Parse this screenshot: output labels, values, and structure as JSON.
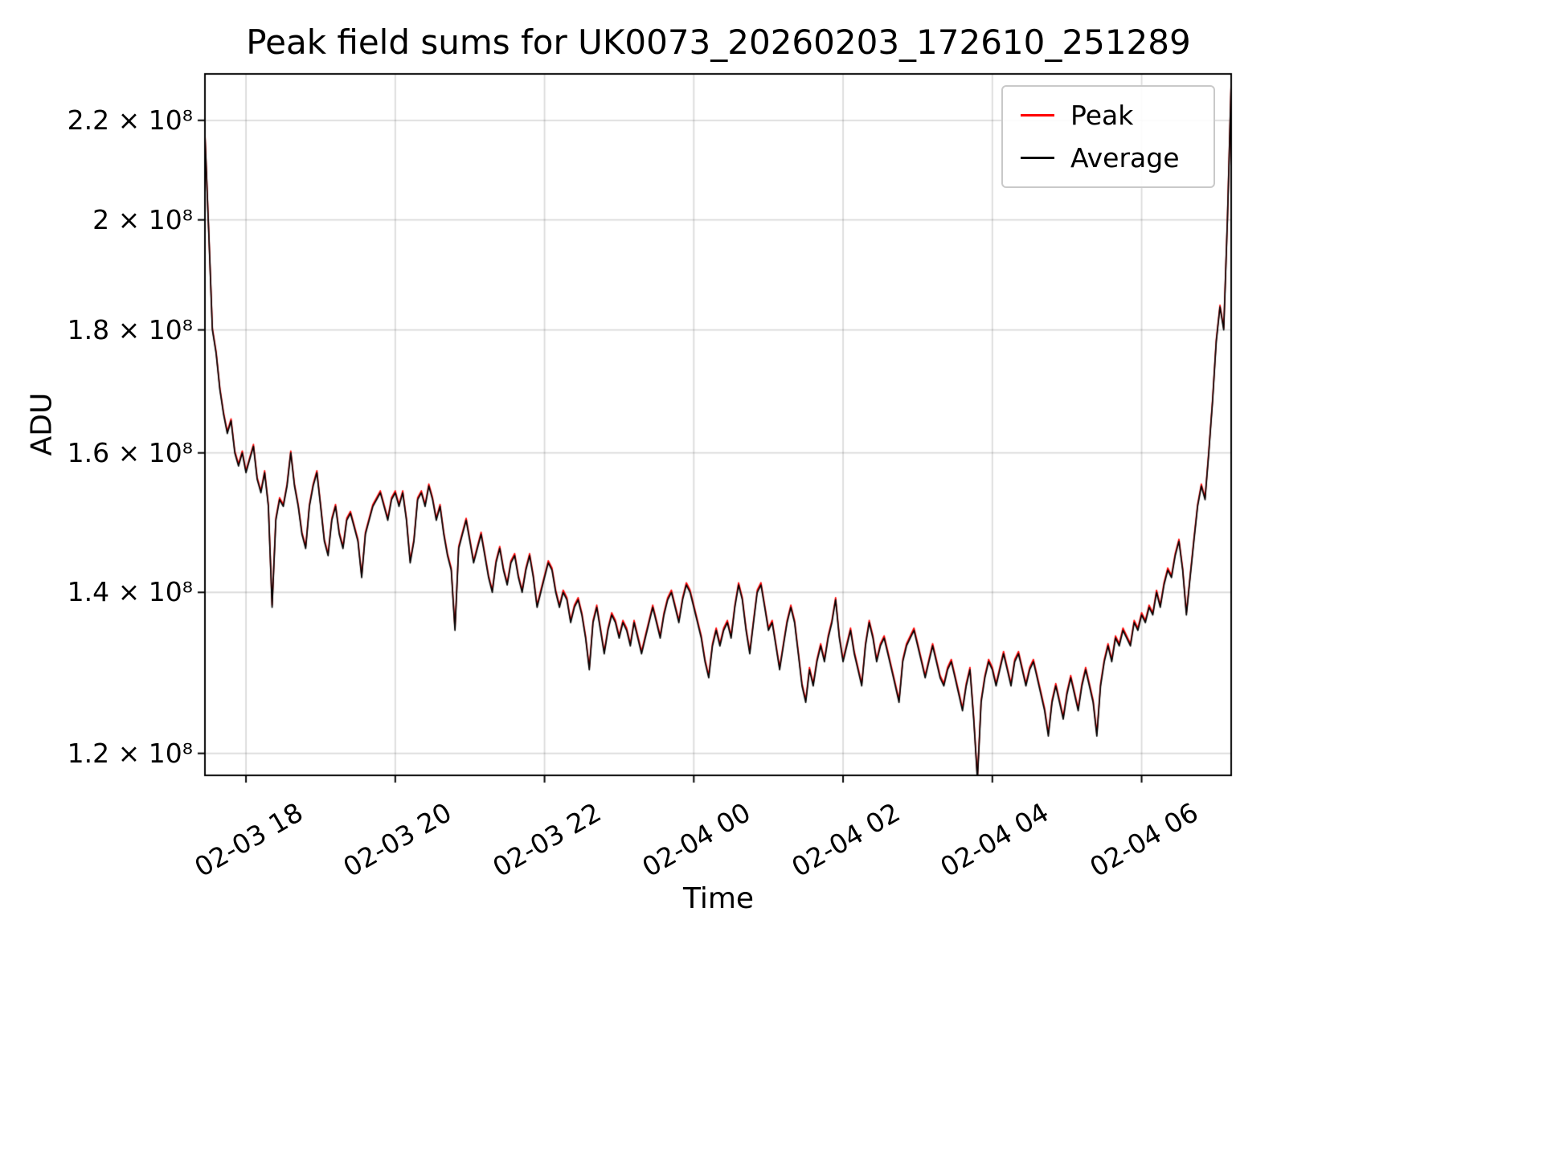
{
  "chart_data": {
    "type": "line",
    "title": "Peak field sums for UK0073_20260203_172610_251289",
    "xlabel": "Time",
    "ylabel": "ADU",
    "yscale": "log",
    "grid": true,
    "legend_position": "upper right",
    "x_unit": "hours since 02-03 00:00",
    "values_unit": "1e8 ADU",
    "xlim": [
      17.45,
      31.2
    ],
    "ylim_e8": [
      1.175,
      2.3
    ],
    "x_ticks": [
      {
        "hour": 18,
        "label": "02-03 18"
      },
      {
        "hour": 20,
        "label": "02-03 20"
      },
      {
        "hour": 22,
        "label": "02-03 22"
      },
      {
        "hour": 24,
        "label": "02-04 00"
      },
      {
        "hour": 26,
        "label": "02-04 02"
      },
      {
        "hour": 28,
        "label": "02-04 04"
      },
      {
        "hour": 30,
        "label": "02-04 06"
      }
    ],
    "y_ticks": [
      {
        "value_e8": 1.2,
        "label": "1.2 × 10⁸"
      },
      {
        "value_e8": 1.4,
        "label": "1.4 × 10⁸"
      },
      {
        "value_e8": 1.6,
        "label": "1.6 × 10⁸"
      },
      {
        "value_e8": 1.8,
        "label": "1.8 × 10⁸"
      },
      {
        "value_e8": 2.0,
        "label": "2 × 10⁸"
      },
      {
        "value_e8": 2.2,
        "label": "2.2 × 10⁸"
      }
    ],
    "t0_hours": 17.45,
    "dt_hours": 0.05,
    "series": [
      {
        "name": "Peak",
        "color": "#ff0000",
        "offset_e8": 0.003
      },
      {
        "name": "Average",
        "color": "#000000",
        "offset_e8": 0
      }
    ],
    "values_e8": [
      2.17,
      1.98,
      1.8,
      1.76,
      1.7,
      1.66,
      1.63,
      1.65,
      1.6,
      1.58,
      1.6,
      1.57,
      1.59,
      1.61,
      1.56,
      1.54,
      1.57,
      1.52,
      1.38,
      1.5,
      1.53,
      1.52,
      1.55,
      1.6,
      1.55,
      1.52,
      1.48,
      1.46,
      1.52,
      1.55,
      1.57,
      1.52,
      1.47,
      1.45,
      1.5,
      1.52,
      1.48,
      1.46,
      1.5,
      1.51,
      1.49,
      1.47,
      1.42,
      1.48,
      1.5,
      1.52,
      1.53,
      1.54,
      1.52,
      1.5,
      1.53,
      1.54,
      1.52,
      1.54,
      1.5,
      1.44,
      1.47,
      1.53,
      1.54,
      1.52,
      1.55,
      1.53,
      1.5,
      1.52,
      1.48,
      1.45,
      1.43,
      1.35,
      1.46,
      1.48,
      1.5,
      1.47,
      1.44,
      1.46,
      1.48,
      1.45,
      1.42,
      1.4,
      1.44,
      1.46,
      1.43,
      1.41,
      1.44,
      1.45,
      1.42,
      1.4,
      1.43,
      1.45,
      1.42,
      1.38,
      1.4,
      1.42,
      1.44,
      1.43,
      1.4,
      1.38,
      1.4,
      1.39,
      1.36,
      1.38,
      1.39,
      1.37,
      1.34,
      1.3,
      1.36,
      1.38,
      1.35,
      1.32,
      1.35,
      1.37,
      1.36,
      1.34,
      1.36,
      1.35,
      1.33,
      1.36,
      1.34,
      1.32,
      1.34,
      1.36,
      1.38,
      1.36,
      1.34,
      1.37,
      1.39,
      1.4,
      1.38,
      1.36,
      1.39,
      1.41,
      1.4,
      1.38,
      1.36,
      1.34,
      1.31,
      1.29,
      1.33,
      1.35,
      1.33,
      1.35,
      1.36,
      1.34,
      1.38,
      1.41,
      1.39,
      1.35,
      1.32,
      1.36,
      1.4,
      1.41,
      1.38,
      1.35,
      1.36,
      1.33,
      1.3,
      1.33,
      1.36,
      1.38,
      1.36,
      1.32,
      1.28,
      1.26,
      1.3,
      1.28,
      1.31,
      1.33,
      1.31,
      1.34,
      1.36,
      1.39,
      1.34,
      1.31,
      1.33,
      1.35,
      1.32,
      1.3,
      1.28,
      1.33,
      1.36,
      1.34,
      1.31,
      1.33,
      1.34,
      1.32,
      1.3,
      1.28,
      1.26,
      1.31,
      1.33,
      1.34,
      1.35,
      1.33,
      1.31,
      1.29,
      1.31,
      1.33,
      1.31,
      1.29,
      1.28,
      1.3,
      1.31,
      1.29,
      1.27,
      1.25,
      1.28,
      1.3,
      1.24,
      1.17,
      1.26,
      1.29,
      1.31,
      1.3,
      1.28,
      1.3,
      1.32,
      1.3,
      1.28,
      1.31,
      1.32,
      1.3,
      1.28,
      1.3,
      1.31,
      1.29,
      1.27,
      1.25,
      1.22,
      1.26,
      1.28,
      1.26,
      1.24,
      1.27,
      1.29,
      1.27,
      1.25,
      1.28,
      1.3,
      1.28,
      1.26,
      1.22,
      1.28,
      1.31,
      1.33,
      1.31,
      1.34,
      1.33,
      1.35,
      1.34,
      1.33,
      1.36,
      1.35,
      1.37,
      1.36,
      1.38,
      1.37,
      1.4,
      1.38,
      1.41,
      1.43,
      1.42,
      1.45,
      1.47,
      1.43,
      1.37,
      1.42,
      1.47,
      1.52,
      1.55,
      1.53,
      1.6,
      1.68,
      1.78,
      1.84,
      1.8,
      2.0,
      2.28
    ]
  }
}
